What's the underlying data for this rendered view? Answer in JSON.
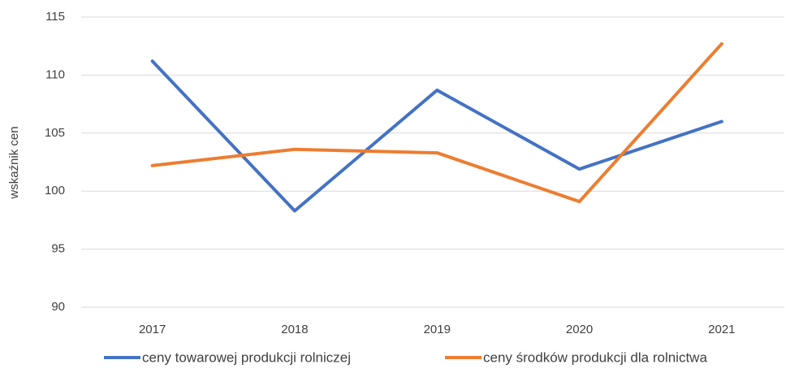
{
  "chart_data": {
    "type": "line",
    "y_label": "wskaźnik cen",
    "categories": [
      "2017",
      "2018",
      "2019",
      "2020",
      "2021"
    ],
    "series": [
      {
        "name": "ceny towarowej produkcji rolniczej",
        "color": "#4472c4",
        "values": [
          111.2,
          98.3,
          108.7,
          101.9,
          106.0
        ]
      },
      {
        "name": "ceny środków produkcji dla rolnictwa",
        "color": "#ed7d31",
        "values": [
          102.2,
          103.6,
          103.3,
          99.1,
          112.7
        ]
      }
    ],
    "ylim": [
      90,
      115
    ],
    "yticks": [
      90,
      95,
      100,
      105,
      110,
      115
    ],
    "grid": true,
    "legend": "bottom"
  }
}
